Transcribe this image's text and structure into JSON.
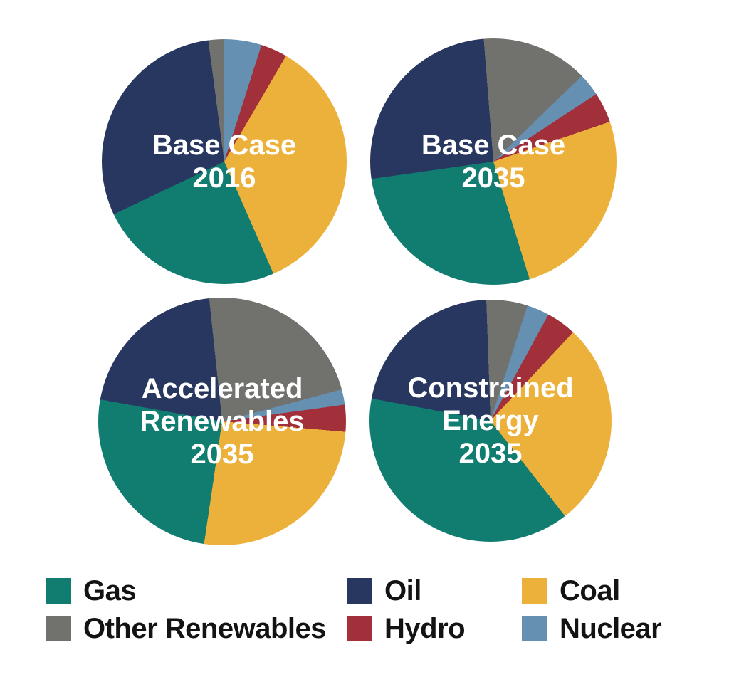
{
  "page": {
    "background": "#ffffff"
  },
  "series_colors": {
    "Gas": "#117d70",
    "Oil": "#283760",
    "Coal": "#ecb13a",
    "Other Renewables": "#71726d",
    "Hydro": "#a2303a",
    "Nuclear": "#6590b2"
  },
  "legend": {
    "position": "bottom",
    "items": [
      {
        "label": "Gas",
        "color": "#117d70"
      },
      {
        "label": "Oil",
        "color": "#283760"
      },
      {
        "label": "Coal",
        "color": "#ecb13a"
      },
      {
        "label": "Other Renewables",
        "color": "#71726d"
      },
      {
        "label": "Hydro",
        "color": "#a2303a"
      },
      {
        "label": "Nuclear",
        "color": "#6590b2"
      }
    ]
  },
  "chart_data": [
    {
      "type": "pie",
      "title": "Base Case 2016",
      "title_lines": [
        "Base Case",
        "2016"
      ],
      "start_angle_deg": -7.5,
      "clockwise": true,
      "slices": [
        {
          "label": "Other Renewables",
          "value": 2
        },
        {
          "label": "Nuclear",
          "value": 5
        },
        {
          "label": "Hydro",
          "value": 3.5
        },
        {
          "label": "Coal",
          "value": 35
        },
        {
          "label": "Gas",
          "value": 24.5
        },
        {
          "label": "Oil",
          "value": 30
        }
      ]
    },
    {
      "type": "pie",
      "title": "Base Case 2035",
      "title_lines": [
        "Base Case",
        "2035"
      ],
      "start_angle_deg": -4.5,
      "clockwise": true,
      "slices": [
        {
          "label": "Other Renewables",
          "value": 14
        },
        {
          "label": "Nuclear",
          "value": 3
        },
        {
          "label": "Hydro",
          "value": 4
        },
        {
          "label": "Coal",
          "value": 25.5
        },
        {
          "label": "Gas",
          "value": 27.5
        },
        {
          "label": "Oil",
          "value": 26
        }
      ]
    },
    {
      "type": "pie",
      "title": "Accelerated Renewables 2035",
      "title_lines": [
        "Accelerated",
        "Renewables",
        "2035"
      ],
      "start_angle_deg": -6,
      "clockwise": true,
      "slices": [
        {
          "label": "Other Renewables",
          "value": 22.5
        },
        {
          "label": "Nuclear",
          "value": 2
        },
        {
          "label": "Hydro",
          "value": 3.5
        },
        {
          "label": "Coal",
          "value": 26
        },
        {
          "label": "Gas",
          "value": 25.5
        },
        {
          "label": "Oil",
          "value": 20.5
        }
      ]
    },
    {
      "type": "pie",
      "title": "Constrained Energy 2035",
      "title_lines": [
        "Constrained",
        "Energy",
        "2035"
      ],
      "start_angle_deg": -2,
      "clockwise": true,
      "slices": [
        {
          "label": "Other Renewables",
          "value": 5.5
        },
        {
          "label": "Nuclear",
          "value": 3
        },
        {
          "label": "Hydro",
          "value": 4
        },
        {
          "label": "Coal",
          "value": 27.5
        },
        {
          "label": "Gas",
          "value": 38.5
        },
        {
          "label": "Oil",
          "value": 21.5
        }
      ]
    }
  ]
}
